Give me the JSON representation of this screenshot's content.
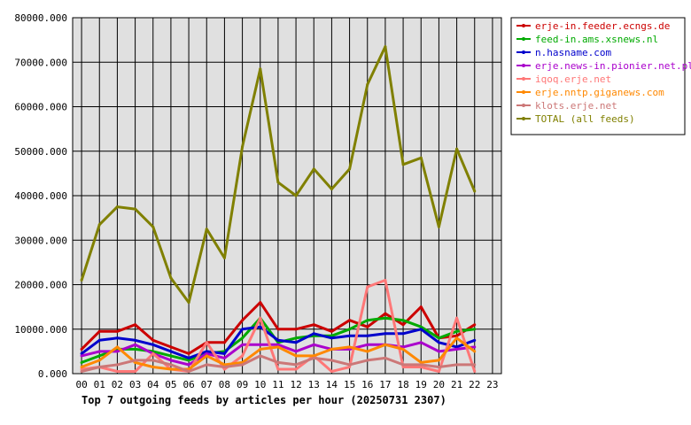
{
  "chart_data": {
    "type": "line",
    "title": "Top 7 outgoing feeds by articles per hour (20250731 2307)",
    "xlabel": "",
    "ylabel": "",
    "x": [
      "00",
      "01",
      "02",
      "03",
      "04",
      "05",
      "06",
      "07",
      "08",
      "09",
      "10",
      "11",
      "12",
      "13",
      "14",
      "15",
      "16",
      "17",
      "18",
      "19",
      "20",
      "21",
      "22"
    ],
    "x_ticks": [
      "00",
      "01",
      "02",
      "03",
      "04",
      "05",
      "06",
      "07",
      "08",
      "09",
      "10",
      "11",
      "12",
      "13",
      "14",
      "15",
      "16",
      "17",
      "18",
      "19",
      "20",
      "21",
      "22",
      "23"
    ],
    "y_ticks": [
      "0.000",
      "10000.000",
      "20000.000",
      "30000.000",
      "40000.000",
      "50000.000",
      "60000.000",
      "70000.000",
      "80000.000"
    ],
    "ylim": [
      0,
      80000
    ],
    "grid": true,
    "legend_position": "right",
    "series": [
      {
        "name": "erje-in.feeder.ecngs.de",
        "color": "#cc0000",
        "values": [
          5500,
          9500,
          9500,
          11000,
          7500,
          6000,
          4500,
          7000,
          7000,
          12000,
          16000,
          10000,
          10000,
          11000,
          9500,
          12000,
          10500,
          13500,
          11000,
          15000,
          8000,
          8500,
          11000
        ]
      },
      {
        "name": "feed-in.ams.xsnews.nl",
        "color": "#00aa00",
        "values": [
          2500,
          4000,
          5500,
          5500,
          5000,
          4000,
          3000,
          4500,
          5000,
          8000,
          12500,
          7000,
          8000,
          8500,
          8500,
          10000,
          12000,
          12500,
          12000,
          10500,
          8000,
          9500,
          10000
        ]
      },
      {
        "name": "n.hasname.com",
        "color": "#0000cc",
        "values": [
          4500,
          7500,
          8000,
          7500,
          6500,
          5000,
          3500,
          5000,
          4500,
          10000,
          10500,
          7500,
          7000,
          9000,
          8000,
          8500,
          8500,
          9000,
          9000,
          10000,
          7000,
          6000,
          7500
        ]
      },
      {
        "name": "erje.news-in.pionier.net.pl",
        "color": "#aa00cc",
        "values": [
          4000,
          5000,
          5000,
          6500,
          4500,
          3000,
          2000,
          4500,
          3500,
          6500,
          6500,
          6500,
          5000,
          6500,
          5500,
          5500,
          6500,
          6500,
          6000,
          7000,
          5000,
          5500,
          6000
        ]
      },
      {
        "name": "iqoq.erje.net",
        "color": "#ff7777",
        "values": [
          1000,
          1500,
          500,
          500,
          4500,
          1000,
          500,
          7000,
          1000,
          4000,
          12500,
          1000,
          1000,
          4000,
          500,
          1500,
          19500,
          21000,
          1500,
          1500,
          500,
          12500,
          500
        ]
      },
      {
        "name": "erje.nntp.giganews.com",
        "color": "#ff8800",
        "values": [
          1500,
          3000,
          6000,
          2500,
          1500,
          1000,
          1000,
          4000,
          2000,
          2500,
          5500,
          6000,
          4000,
          4000,
          5500,
          6000,
          5000,
          6500,
          5500,
          2500,
          3000,
          8000,
          5000
        ]
      },
      {
        "name": "klots.erje.net",
        "color": "#cc7777",
        "values": [
          500,
          1500,
          2000,
          3000,
          3000,
          2000,
          500,
          2000,
          1500,
          2000,
          4000,
          2500,
          2000,
          3500,
          3000,
          2000,
          3000,
          3500,
          2000,
          2000,
          1500,
          2000,
          2000
        ]
      },
      {
        "name": "TOTAL (all feeds)",
        "color": "#808000",
        "values": [
          21000,
          33500,
          37500,
          37000,
          33000,
          21500,
          16000,
          32500,
          26000,
          51000,
          68500,
          43000,
          40000,
          46000,
          41500,
          46000,
          65000,
          73500,
          47000,
          48500,
          33000,
          50500,
          41000
        ]
      }
    ]
  }
}
